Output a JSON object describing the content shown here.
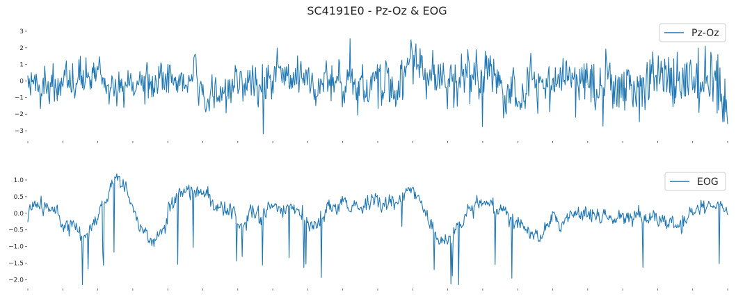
{
  "chart_data": {
    "type": "line",
    "title": "SC4191E0 - Pz-Oz & EOG",
    "panels": [
      {
        "series": [
          {
            "name": "Pz-Oz",
            "color": "#1f77b4"
          }
        ],
        "ylim": [
          -3.5,
          3.5
        ],
        "yticks": [
          3,
          2,
          1,
          0,
          -1,
          -2,
          -3
        ],
        "ytick_labels": [
          "3",
          "2",
          "1",
          "0",
          "−1",
          "−2",
          "−3"
        ],
        "legend": "top-right",
        "grid": false,
        "signal": {
          "sigma": 0.5,
          "clip": [
            -3.2,
            3.4
          ],
          "samples": 1000
        }
      },
      {
        "series": [
          {
            "name": "EOG",
            "color": "#1f77b4"
          }
        ],
        "ylim": [
          -2.2,
          1.25
        ],
        "yticks": [
          1.0,
          0.5,
          0.0,
          -0.5,
          -1.0,
          -1.5,
          -2.0
        ],
        "ytick_labels": [
          "1.0",
          "0.5",
          "0.0",
          "−0.5",
          "−1.0",
          "−1.5",
          "−2.0"
        ],
        "legend": "top-right",
        "grid": false,
        "signal": {
          "sigma": 0.2,
          "clip": [
            -2.15,
            1.2
          ],
          "samples": 1000
        }
      }
    ],
    "x_ticks": 20,
    "x_tick_labels_visible": false
  }
}
